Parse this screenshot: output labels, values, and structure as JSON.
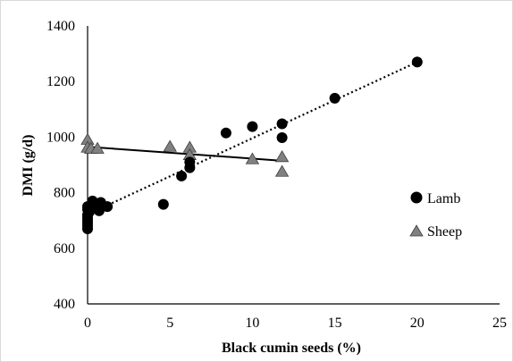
{
  "chart_data": {
    "type": "scatter",
    "title": "",
    "xlabel": "Black cumin seeds (%)",
    "ylabel": "DMI (g/d)",
    "xlim": [
      0,
      25
    ],
    "ylim": [
      400,
      1400
    ],
    "x_ticks": [
      0,
      5,
      10,
      15,
      20,
      25
    ],
    "y_ticks": [
      400,
      600,
      800,
      1000,
      1200,
      1400
    ],
    "grid": false,
    "legend_position": "right",
    "series": [
      {
        "name": "Lamb",
        "marker": "circle",
        "color": "#000000",
        "points": [
          [
            0,
            670
          ],
          [
            0,
            680
          ],
          [
            0,
            690
          ],
          [
            0,
            700
          ],
          [
            0,
            710
          ],
          [
            0,
            720
          ],
          [
            0,
            740
          ],
          [
            0,
            750
          ],
          [
            0.1,
            730
          ],
          [
            0.2,
            755
          ],
          [
            0.3,
            770
          ],
          [
            0.4,
            745
          ],
          [
            0.5,
            760
          ],
          [
            0.7,
            735
          ],
          [
            0.8,
            765
          ],
          [
            1.2,
            750
          ],
          [
            4.6,
            758
          ],
          [
            5.7,
            860
          ],
          [
            6.2,
            890
          ],
          [
            6.2,
            910
          ],
          [
            8.4,
            1015
          ],
          [
            10.0,
            1038
          ],
          [
            11.8,
            998
          ],
          [
            11.8,
            1048
          ],
          [
            15.0,
            1140
          ],
          [
            20.0,
            1270
          ]
        ],
        "trendline": {
          "style": "dotted",
          "x": [
            0,
            20
          ],
          "y": [
            722,
            1270
          ]
        }
      },
      {
        "name": "Sheep",
        "marker": "triangle",
        "color": "#808080",
        "points": [
          [
            0,
            990
          ],
          [
            0,
            962
          ],
          [
            0.2,
            958
          ],
          [
            0.6,
            958
          ],
          [
            5.0,
            965
          ],
          [
            6.2,
            962
          ],
          [
            6.2,
            935
          ],
          [
            10.0,
            920
          ],
          [
            11.8,
            928
          ],
          [
            11.8,
            875
          ]
        ],
        "trendline": {
          "style": "solid",
          "x": [
            0,
            11.8
          ],
          "y": [
            965,
            915
          ]
        }
      }
    ]
  }
}
